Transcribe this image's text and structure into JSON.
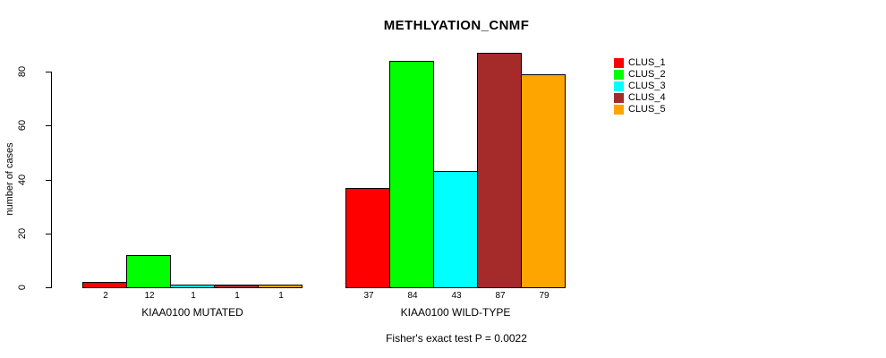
{
  "chart_data": {
    "type": "bar",
    "title": "METHLYATION_CNMF",
    "ylabel": "number of cases",
    "xlabel": "",
    "yticks": [
      0,
      20,
      40,
      60,
      80
    ],
    "ylim": [
      0,
      87
    ],
    "grid": false,
    "legend_position": "right",
    "bar_value_labels": true,
    "categories": [
      "KIAA0100 MUTATED",
      "KIAA0100 WILD-TYPE"
    ],
    "series": [
      {
        "name": "CLUS_1",
        "color": "#FF0000",
        "values": [
          2,
          37
        ]
      },
      {
        "name": "CLUS_2",
        "color": "#00FF00",
        "values": [
          12,
          84
        ]
      },
      {
        "name": "CLUS_3",
        "color": "#00FFFF",
        "values": [
          1,
          43
        ]
      },
      {
        "name": "CLUS_4",
        "color": "#A52A2A",
        "values": [
          1,
          87
        ]
      },
      {
        "name": "CLUS_5",
        "color": "#FFA500",
        "values": [
          1,
          79
        ]
      }
    ],
    "note": "Fisher's exact test P = 0.0022"
  }
}
